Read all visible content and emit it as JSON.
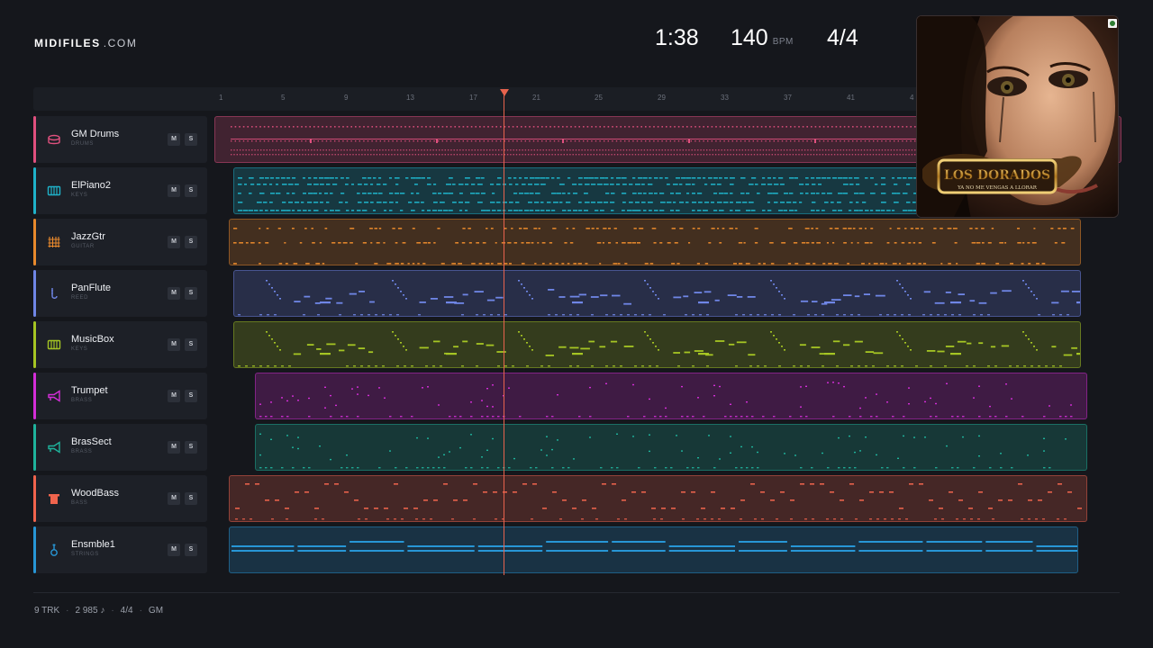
{
  "brand": {
    "name": "MIDIFILES",
    "domain": ".COM"
  },
  "transport": {
    "time": "1:38",
    "tempo": "140",
    "tempo_unit": "BPM",
    "time_signature": "4/4"
  },
  "ruler": {
    "bars": [
      "1",
      "5",
      "9",
      "13",
      "17",
      "21",
      "25",
      "29",
      "33",
      "37",
      "41",
      "4"
    ]
  },
  "tracks": [
    {
      "name": "GM Drums",
      "category": "DRUMS",
      "color": "#e0507e",
      "icon": "drum-icon",
      "mute_label": "M",
      "solo_label": "S"
    },
    {
      "name": "ElPiano2",
      "category": "KEYS",
      "color": "#1fb2c9",
      "icon": "piano-icon",
      "mute_label": "M",
      "solo_label": "S"
    },
    {
      "name": "JazzGtr",
      "category": "GUITAR",
      "color": "#e8892c",
      "icon": "guitar-icon",
      "mute_label": "M",
      "solo_label": "S"
    },
    {
      "name": "PanFlute",
      "category": "REED",
      "color": "#6f86e6",
      "icon": "flute-icon",
      "mute_label": "M",
      "solo_label": "S"
    },
    {
      "name": "MusicBox",
      "category": "KEYS",
      "color": "#a5c523",
      "icon": "piano-icon",
      "mute_label": "M",
      "solo_label": "S"
    },
    {
      "name": "Trumpet",
      "category": "BRASS",
      "color": "#d42ed8",
      "icon": "trumpet-icon",
      "mute_label": "M",
      "solo_label": "S"
    },
    {
      "name": "BrasSect",
      "category": "BRASS",
      "color": "#1fb39c",
      "icon": "trumpet-icon",
      "mute_label": "M",
      "solo_label": "S"
    },
    {
      "name": "WoodBass",
      "category": "BASS",
      "color": "#f0644d",
      "icon": "bass-icon",
      "mute_label": "M",
      "solo_label": "S"
    },
    {
      "name": "Ensmble1",
      "category": "STRINGS",
      "color": "#2796d6",
      "icon": "strings-icon",
      "mute_label": "M",
      "solo_label": "S"
    }
  ],
  "album_cover": {
    "title": "LOS DORADOS",
    "subtitle": "YA NO ME VENGAS A LLORAR"
  },
  "footer": {
    "tracks": "9 TRK",
    "notes": "2 985 ♪",
    "signature": "4/4",
    "standard": "GM"
  }
}
